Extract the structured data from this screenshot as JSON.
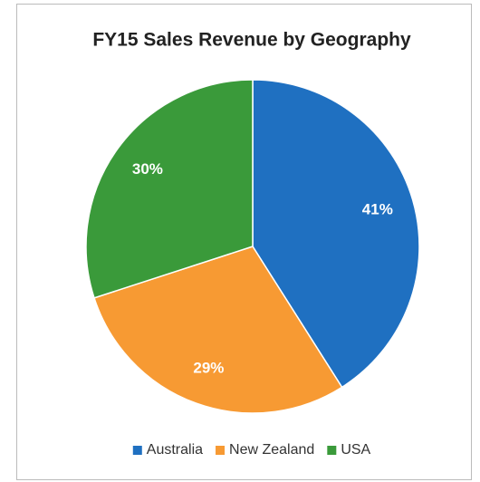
{
  "chart_data": {
    "type": "pie",
    "title": "FY15 Sales Revenue by Geography",
    "categories": [
      "Australia",
      "New Zealand",
      "USA"
    ],
    "values": [
      41,
      29,
      30
    ],
    "value_labels": [
      "41%",
      "29%",
      "30%"
    ],
    "colors": [
      "#1f70c1",
      "#f79a33",
      "#3a9a3a"
    ],
    "legend": "bottom"
  }
}
